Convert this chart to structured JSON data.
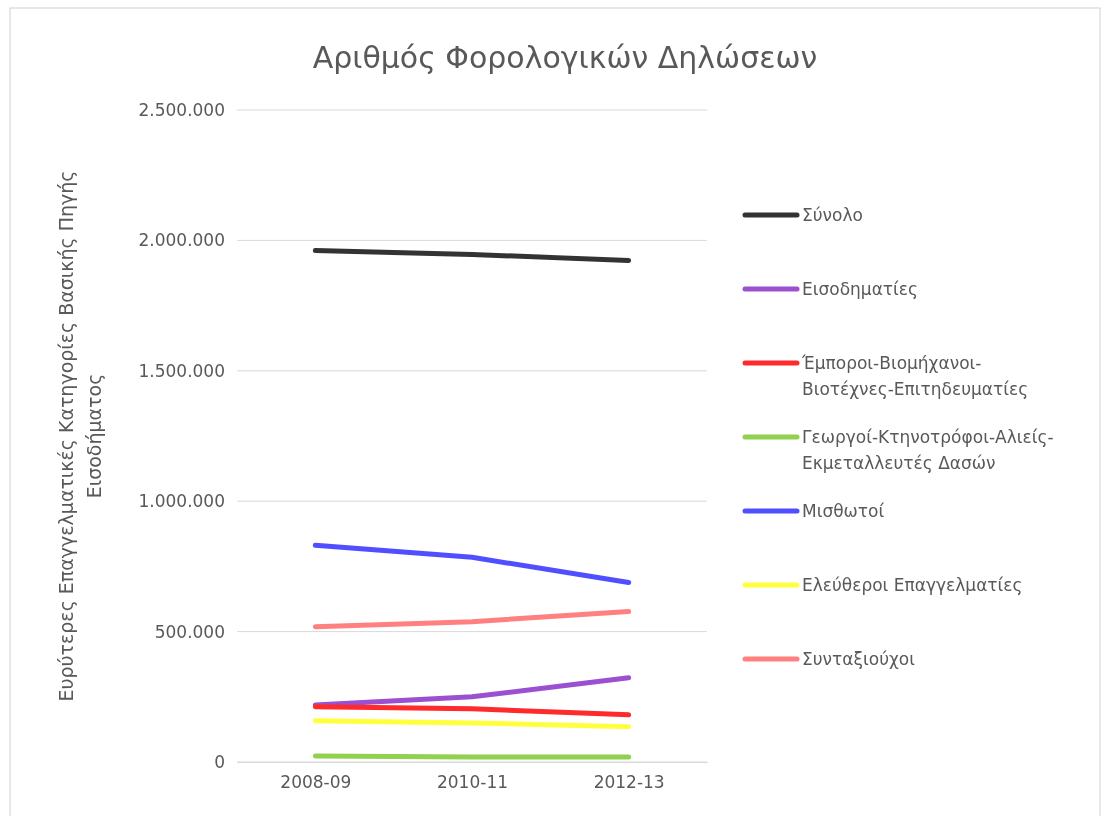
{
  "chart_data": {
    "type": "line",
    "title": "Αριθμός Φορολογικών Δηλώσεων",
    "ylabel": "Ευρύτερες Επαγγελματικές Κατηγορίες Βασικής Πηγής Εισοδήματος",
    "categories": [
      "2008-09",
      "2010-11",
      "2012-13"
    ],
    "series": [
      {
        "name": "Σύνολο",
        "color": "#333333",
        "values": [
          1961000,
          1946000,
          1923000
        ]
      },
      {
        "name": "Εισοδηματίες",
        "color": "#9b4fd1",
        "values": [
          219000,
          250000,
          323000
        ]
      },
      {
        "name": "Έμποροι-Βιομήχανοι-Βιοτέχνες-Επιτηδευματίες",
        "color": "#ff2b2b",
        "values": [
          212000,
          204000,
          181000
        ]
      },
      {
        "name": "Γεωργοί-Κτηνοτρόφοι-Αλιείς-Εκμεταλλευτές Δασών",
        "color": "#92d050",
        "values": [
          23000,
          19000,
          19000
        ]
      },
      {
        "name": "Μισθωτοί",
        "color": "#4f4fff",
        "values": [
          831000,
          785000,
          688000
        ]
      },
      {
        "name": "Ελεύθεροι Επαγγελματίες",
        "color": "#ffff40",
        "values": [
          158000,
          150000,
          135000
        ]
      },
      {
        "name": "Συνταξιούχοι",
        "color": "#ff8080",
        "values": [
          519000,
          538000,
          577000
        ]
      }
    ],
    "ylim": [
      0,
      2500000
    ],
    "yticks": [
      {
        "value": 0,
        "label": "0"
      },
      {
        "value": 500000,
        "label": "500.000"
      },
      {
        "value": 1000000,
        "label": "1.000.000"
      },
      {
        "value": 1500000,
        "label": "1.500.000"
      },
      {
        "value": 2000000,
        "label": "2.000.000"
      },
      {
        "value": 2500000,
        "label": "2.500.000"
      }
    ],
    "grid": "y",
    "legend": "right",
    "marker": "none",
    "line_style": "solid"
  }
}
